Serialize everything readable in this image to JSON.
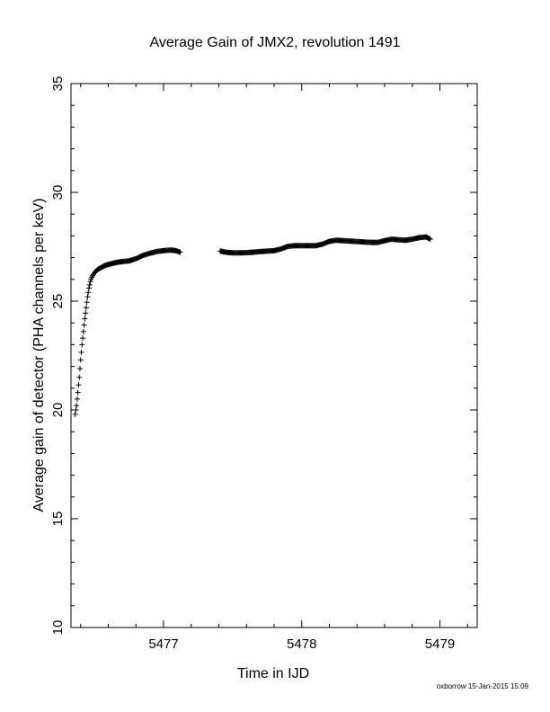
{
  "chart_data": {
    "type": "scatter",
    "title": "Average Gain of JMX2, revolution 1491",
    "xlabel": "Time in IJD",
    "ylabel": "Average gain of detector (PHA channels per keV)",
    "xlim": [
      5476.33,
      5479.27
    ],
    "ylim": [
      10,
      35
    ],
    "x_ticks": [
      5477,
      5478,
      5479
    ],
    "x_tick_labels": [
      "5477",
      "5478",
      "5479"
    ],
    "y_ticks": [
      10,
      15,
      20,
      25,
      30,
      35
    ],
    "y_tick_labels": [
      "10",
      "15",
      "20",
      "25",
      "30",
      "35"
    ],
    "marker": "plus",
    "grid": false,
    "series": [
      {
        "points": [
          [
            5476.36,
            19.8
          ],
          [
            5476.37,
            20.2
          ],
          [
            5476.38,
            20.8
          ],
          [
            5476.39,
            21.5
          ],
          [
            5476.4,
            22.3
          ],
          [
            5476.41,
            23.0
          ],
          [
            5476.42,
            23.6
          ],
          [
            5476.43,
            24.2
          ],
          [
            5476.44,
            24.7
          ],
          [
            5476.45,
            25.2
          ],
          [
            5476.46,
            25.6
          ],
          [
            5476.47,
            25.9
          ],
          [
            5476.48,
            26.1
          ],
          [
            5476.5,
            26.3
          ],
          [
            5476.52,
            26.45
          ],
          [
            5476.55,
            26.55
          ],
          [
            5476.58,
            26.65
          ],
          [
            5476.62,
            26.72
          ],
          [
            5476.66,
            26.78
          ],
          [
            5476.7,
            26.82
          ],
          [
            5476.75,
            26.85
          ],
          [
            5476.8,
            26.95
          ],
          [
            5476.85,
            27.1
          ],
          [
            5476.9,
            27.2
          ],
          [
            5476.95,
            27.28
          ],
          [
            5477.0,
            27.32
          ],
          [
            5477.05,
            27.35
          ],
          [
            5477.09,
            27.32
          ],
          [
            5477.12,
            27.25
          ],
          [
            5477.41,
            27.3
          ],
          [
            5477.45,
            27.25
          ],
          [
            5477.5,
            27.22
          ],
          [
            5477.55,
            27.22
          ],
          [
            5477.6,
            27.23
          ],
          [
            5477.65,
            27.25
          ],
          [
            5477.7,
            27.28
          ],
          [
            5477.75,
            27.3
          ],
          [
            5477.8,
            27.32
          ],
          [
            5477.85,
            27.4
          ],
          [
            5477.9,
            27.52
          ],
          [
            5477.95,
            27.55
          ],
          [
            5478.0,
            27.55
          ],
          [
            5478.05,
            27.55
          ],
          [
            5478.1,
            27.55
          ],
          [
            5478.15,
            27.62
          ],
          [
            5478.2,
            27.75
          ],
          [
            5478.25,
            27.8
          ],
          [
            5478.3,
            27.78
          ],
          [
            5478.35,
            27.76
          ],
          [
            5478.4,
            27.74
          ],
          [
            5478.45,
            27.72
          ],
          [
            5478.5,
            27.7
          ],
          [
            5478.55,
            27.7
          ],
          [
            5478.6,
            27.78
          ],
          [
            5478.65,
            27.85
          ],
          [
            5478.7,
            27.82
          ],
          [
            5478.75,
            27.8
          ],
          [
            5478.8,
            27.85
          ],
          [
            5478.85,
            27.92
          ],
          [
            5478.9,
            27.95
          ],
          [
            5478.93,
            27.85
          ]
        ]
      }
    ]
  },
  "footer_text": "oxborrow 15-Jan-2015 15:09"
}
